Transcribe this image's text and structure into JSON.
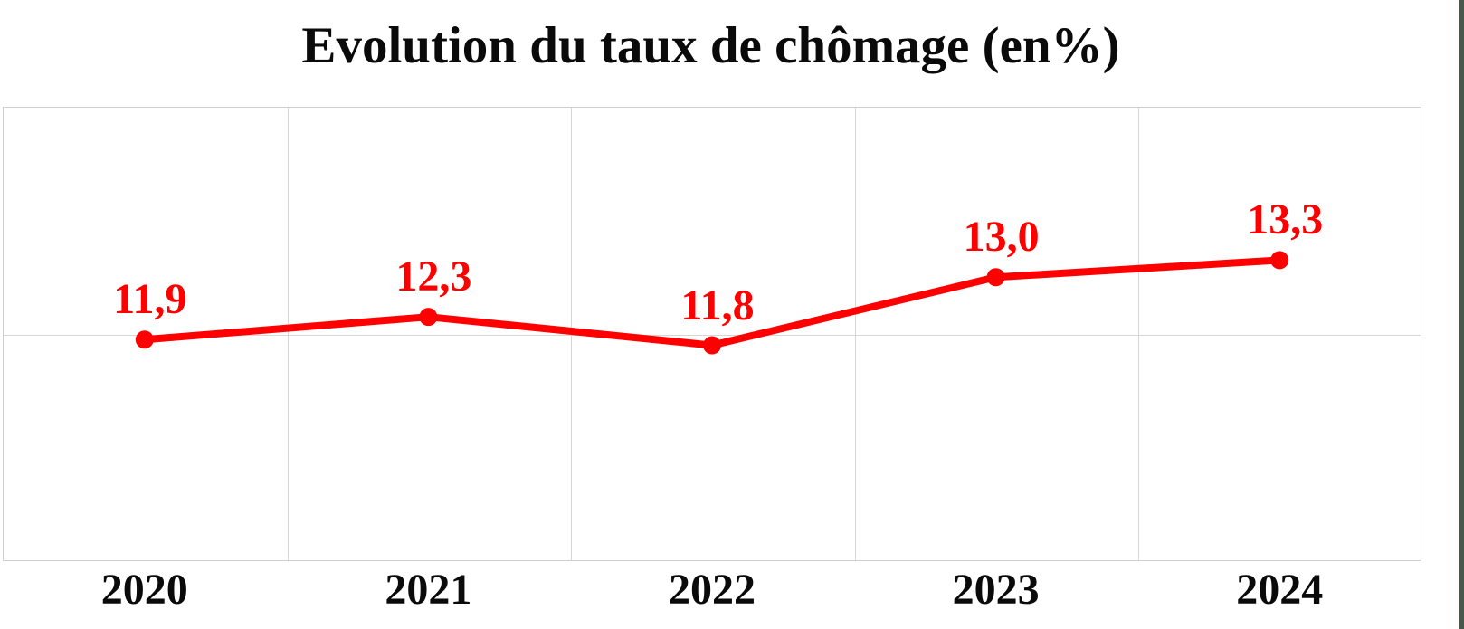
{
  "title": "Evolution du taux de chômage (en%)",
  "colors": {
    "line": "#fe0000",
    "point_label": "#fe0000",
    "title_text": "#0a0a0a",
    "axis_label": "#0a0a0a",
    "gridline": "#d6d6d6",
    "plot_border": "#cfcfcf",
    "background": "#ffffff",
    "right_edge_strip": "#46594a"
  },
  "chart_data": {
    "type": "line",
    "title": "Evolution du taux de chômage (en%)",
    "categories": [
      "2020",
      "2021",
      "2022",
      "2023",
      "2024"
    ],
    "series": [
      {
        "values": [
          11.9,
          12.3,
          11.8,
          13.0,
          13.3
        ],
        "point_labels": [
          "11,9",
          "12,3",
          "11,8",
          "13,0",
          "13,3"
        ]
      }
    ],
    "xlabel": "",
    "ylabel": "",
    "ylim": [
      8,
      16
    ],
    "y_gridline_values": [
      8,
      12,
      16
    ],
    "y_axis_labels_visible": false,
    "grid": true,
    "legend": false,
    "marker": "circle",
    "decimal_separator": ","
  }
}
